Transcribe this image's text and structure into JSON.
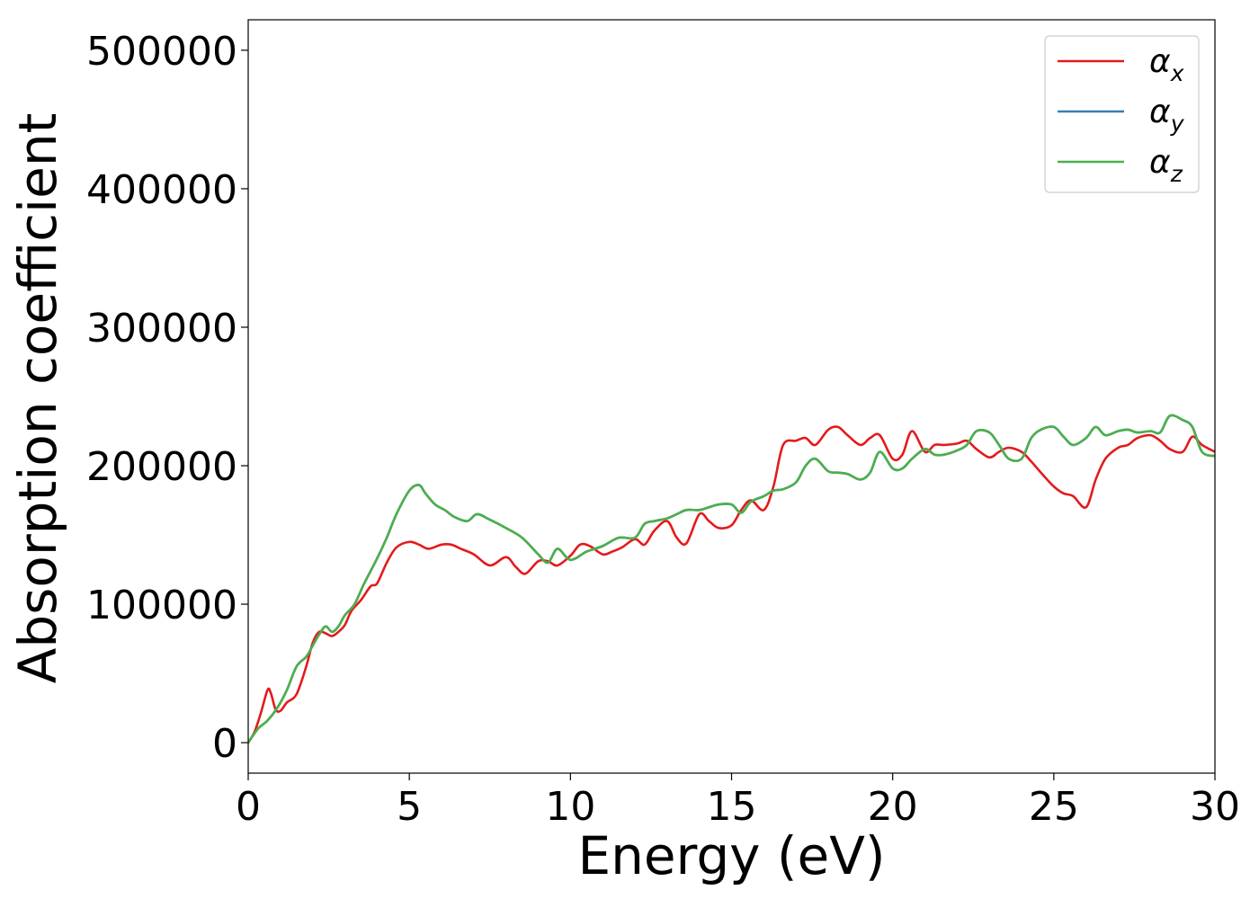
{
  "chart_data": {
    "type": "line",
    "title": "",
    "xlabel": "Energy (eV)",
    "ylabel": "Absorption coefficient",
    "xlim": [
      0,
      30
    ],
    "ylim": [
      -22000,
      522000
    ],
    "xticks": [
      0,
      5,
      10,
      15,
      20,
      25,
      30
    ],
    "xtick_labels": [
      "0",
      "5",
      "10",
      "15",
      "20",
      "25",
      "30"
    ],
    "yticks": [
      0,
      100000,
      200000,
      300000,
      400000,
      500000
    ],
    "ytick_labels": [
      "0",
      "100000",
      "200000",
      "300000",
      "400000",
      "500000"
    ],
    "grid": false,
    "legend_position": "top-right",
    "series": [
      {
        "name": "α_x",
        "label_base": "α",
        "label_sub": "x",
        "color": "#e41a1c",
        "x": [
          0,
          0.2,
          0.4,
          0.6,
          0.7,
          0.85,
          1.0,
          1.2,
          1.5,
          1.8,
          2.0,
          2.2,
          2.4,
          2.6,
          2.8,
          3.0,
          3.2,
          3.5,
          3.8,
          4.0,
          4.3,
          4.6,
          5.0,
          5.3,
          5.6,
          6.0,
          6.3,
          6.6,
          7.0,
          7.5,
          8.0,
          8.3,
          8.6,
          9.0,
          9.3,
          9.6,
          10.0,
          10.3,
          10.6,
          11.0,
          11.3,
          11.6,
          12.0,
          12.3,
          12.6,
          13.0,
          13.3,
          13.6,
          14.0,
          14.3,
          14.6,
          15.0,
          15.3,
          15.6,
          16.0,
          16.3,
          16.6,
          17.0,
          17.3,
          17.6,
          18.0,
          18.3,
          18.6,
          19.0,
          19.3,
          19.6,
          20.0,
          20.3,
          20.6,
          21.0,
          21.3,
          21.6,
          22.0,
          22.3,
          22.6,
          23.0,
          23.3,
          23.6,
          24.0,
          24.3,
          24.6,
          25.0,
          25.3,
          25.6,
          26.0,
          26.3,
          26.6,
          27.0,
          27.3,
          27.6,
          28.0,
          28.3,
          28.6,
          29.0,
          29.3,
          29.6,
          30.0
        ],
        "y": [
          0,
          8000,
          22000,
          38000,
          36000,
          24000,
          23000,
          29000,
          35000,
          55000,
          72000,
          80000,
          79000,
          77000,
          80000,
          85000,
          95000,
          103000,
          113000,
          115000,
          130000,
          141000,
          145000,
          143000,
          140000,
          143000,
          143000,
          140000,
          136000,
          128000,
          134000,
          127000,
          122000,
          131000,
          131000,
          128000,
          135000,
          143000,
          142000,
          136000,
          138000,
          141000,
          147000,
          143000,
          153000,
          160000,
          148000,
          144000,
          165000,
          160000,
          155000,
          157000,
          168000,
          175000,
          168000,
          185000,
          215000,
          218000,
          220000,
          215000,
          226000,
          228000,
          222000,
          215000,
          220000,
          222000,
          205000,
          208000,
          225000,
          210000,
          215000,
          215000,
          216000,
          218000,
          212000,
          206000,
          210000,
          213000,
          210000,
          203000,
          195000,
          185000,
          180000,
          178000,
          170000,
          190000,
          205000,
          213000,
          215000,
          220000,
          222000,
          218000,
          212000,
          210000,
          221000,
          215000,
          210000
        ]
      },
      {
        "name": "α_y",
        "label_base": "α",
        "label_sub": "y",
        "color": "#377eb8",
        "x": [
          0,
          0.3,
          0.6,
          0.9,
          1.2,
          1.5,
          1.8,
          2.0,
          2.2,
          2.4,
          2.6,
          2.8,
          3.0,
          3.3,
          3.6,
          4.0,
          4.3,
          4.6,
          5.0,
          5.3,
          5.5,
          5.8,
          6.1,
          6.4,
          6.8,
          7.1,
          7.5,
          8.0,
          8.5,
          9.0,
          9.3,
          9.6,
          10.0,
          10.5,
          11.0,
          11.5,
          12.0,
          12.3,
          12.6,
          13.0,
          13.3,
          13.6,
          14.0,
          14.3,
          14.6,
          15.0,
          15.3,
          15.6,
          16.0,
          16.3,
          16.6,
          17.0,
          17.3,
          17.6,
          18.0,
          18.3,
          18.6,
          19.0,
          19.3,
          19.6,
          20.0,
          20.3,
          20.6,
          21.0,
          21.3,
          21.6,
          22.0,
          22.3,
          22.6,
          23.0,
          23.3,
          23.6,
          24.0,
          24.3,
          24.6,
          25.0,
          25.3,
          25.6,
          26.0,
          26.3,
          26.6,
          27.0,
          27.3,
          27.6,
          28.0,
          28.3,
          28.6,
          29.0,
          29.3,
          29.6,
          30.0
        ],
        "y": [
          0,
          10000,
          16000,
          25000,
          38000,
          55000,
          62000,
          70000,
          78000,
          84000,
          80000,
          84000,
          92000,
          100000,
          115000,
          133000,
          148000,
          165000,
          182000,
          186000,
          180000,
          172000,
          168000,
          163000,
          160000,
          165000,
          161000,
          155000,
          148000,
          136000,
          130000,
          140000,
          132000,
          138000,
          142000,
          148000,
          148000,
          158000,
          160000,
          162000,
          165000,
          168000,
          168000,
          170000,
          172000,
          172000,
          166000,
          174000,
          178000,
          182000,
          183000,
          188000,
          200000,
          205000,
          196000,
          195000,
          194000,
          190000,
          195000,
          210000,
          198000,
          198000,
          205000,
          212000,
          208000,
          208000,
          211000,
          215000,
          225000,
          224000,
          215000,
          205000,
          205000,
          220000,
          226000,
          228000,
          221000,
          215000,
          220000,
          228000,
          222000,
          225000,
          226000,
          224000,
          225000,
          224000,
          236000,
          233000,
          228000,
          210000,
          207000
        ]
      },
      {
        "name": "α_z",
        "label_base": "α",
        "label_sub": "z",
        "color": "#4daf4a",
        "x": [
          0,
          0.3,
          0.6,
          0.9,
          1.2,
          1.5,
          1.8,
          2.0,
          2.2,
          2.4,
          2.6,
          2.8,
          3.0,
          3.3,
          3.6,
          4.0,
          4.3,
          4.6,
          5.0,
          5.3,
          5.5,
          5.8,
          6.1,
          6.4,
          6.8,
          7.1,
          7.5,
          8.0,
          8.5,
          9.0,
          9.3,
          9.6,
          10.0,
          10.5,
          11.0,
          11.5,
          12.0,
          12.3,
          12.6,
          13.0,
          13.3,
          13.6,
          14.0,
          14.3,
          14.6,
          15.0,
          15.3,
          15.6,
          16.0,
          16.3,
          16.6,
          17.0,
          17.3,
          17.6,
          18.0,
          18.3,
          18.6,
          19.0,
          19.3,
          19.6,
          20.0,
          20.3,
          20.6,
          21.0,
          21.3,
          21.6,
          22.0,
          22.3,
          22.6,
          23.0,
          23.3,
          23.6,
          24.0,
          24.3,
          24.6,
          25.0,
          25.3,
          25.6,
          26.0,
          26.3,
          26.6,
          27.0,
          27.3,
          27.6,
          28.0,
          28.3,
          28.6,
          29.0,
          29.3,
          29.6,
          30.0
        ],
        "y": [
          0,
          10000,
          16000,
          25000,
          38000,
          55000,
          62000,
          70000,
          78000,
          84000,
          80000,
          84000,
          92000,
          100000,
          115000,
          133000,
          148000,
          165000,
          182000,
          186000,
          180000,
          172000,
          168000,
          163000,
          160000,
          165000,
          161000,
          155000,
          148000,
          136000,
          130000,
          140000,
          132000,
          138000,
          142000,
          148000,
          148000,
          158000,
          160000,
          162000,
          165000,
          168000,
          168000,
          170000,
          172000,
          172000,
          166000,
          174000,
          178000,
          182000,
          183000,
          188000,
          200000,
          205000,
          196000,
          195000,
          194000,
          190000,
          195000,
          210000,
          198000,
          198000,
          205000,
          212000,
          208000,
          208000,
          211000,
          215000,
          225000,
          224000,
          215000,
          205000,
          205000,
          220000,
          226000,
          228000,
          221000,
          215000,
          220000,
          228000,
          222000,
          225000,
          226000,
          224000,
          225000,
          224000,
          236000,
          233000,
          228000,
          210000,
          207000
        ]
      }
    ]
  }
}
